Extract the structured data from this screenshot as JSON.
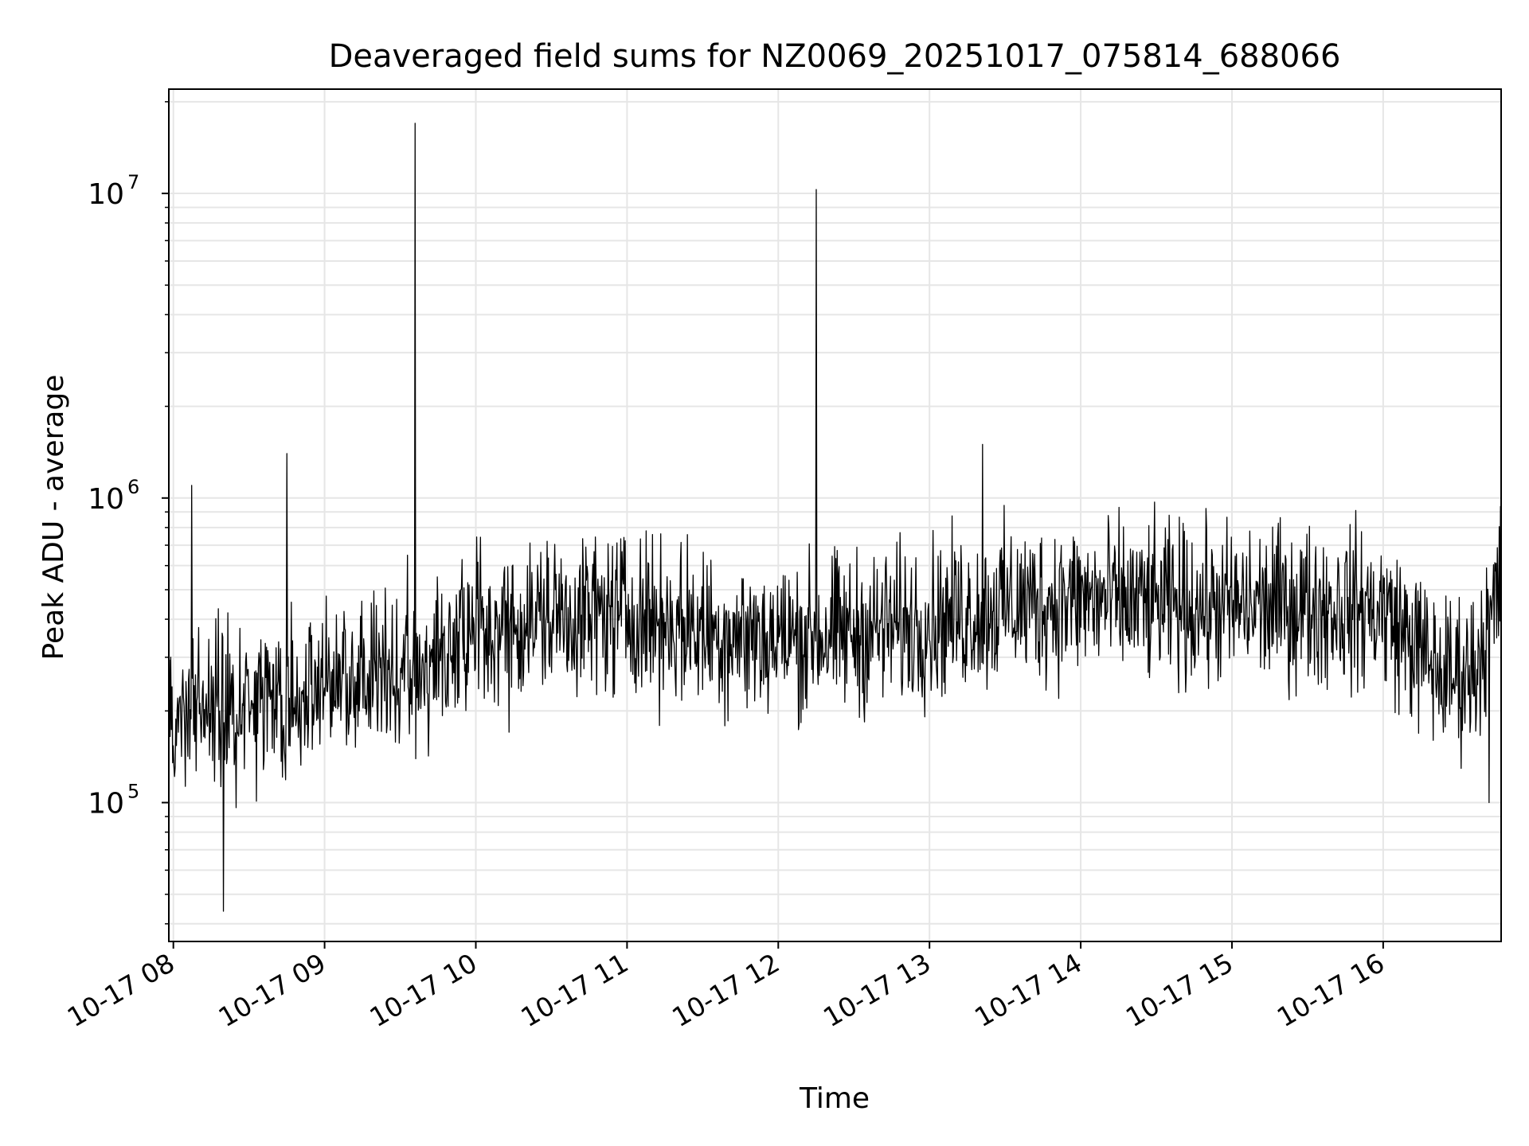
{
  "chart_data": {
    "type": "line",
    "title": "Deaveraged field sums for NZ0069_20251017_075814_688066",
    "xlabel": "Time",
    "ylabel": "Peak ADU - average",
    "yscale": "log",
    "ylim": [
      35000,
      22000000
    ],
    "xlim_hours": [
      7.97,
      16.78
    ],
    "grid": true,
    "x_ticks": [
      {
        "hour": 8,
        "label": "10-17 08"
      },
      {
        "hour": 9,
        "label": "10-17 09"
      },
      {
        "hour": 10,
        "label": "10-17 10"
      },
      {
        "hour": 11,
        "label": "10-17 11"
      },
      {
        "hour": 12,
        "label": "10-17 12"
      },
      {
        "hour": 13,
        "label": "10-17 13"
      },
      {
        "hour": 14,
        "label": "10-17 14"
      },
      {
        "hour": 15,
        "label": "10-17 15"
      },
      {
        "hour": 16,
        "label": "10-17 16"
      }
    ],
    "y_ticks": [
      {
        "value": 100000,
        "base": "10",
        "exp": "5"
      },
      {
        "value": 1000000,
        "base": "10",
        "exp": "6"
      },
      {
        "value": 10000000,
        "base": "10",
        "exp": "7"
      }
    ],
    "series": [
      {
        "name": "Peak ADU - average",
        "color": "#000000",
        "baseline": [
          [
            7.97,
            230000
          ],
          [
            8.5,
            240000
          ],
          [
            9.0,
            270000
          ],
          [
            9.5,
            320000
          ],
          [
            10.0,
            420000
          ],
          [
            10.5,
            480000
          ],
          [
            11.0,
            490000
          ],
          [
            11.5,
            430000
          ],
          [
            12.0,
            400000
          ],
          [
            12.5,
            420000
          ],
          [
            13.0,
            460000
          ],
          [
            13.5,
            520000
          ],
          [
            14.0,
            540000
          ],
          [
            14.5,
            520000
          ],
          [
            15.0,
            510000
          ],
          [
            15.5,
            520000
          ],
          [
            16.0,
            500000
          ],
          [
            16.4,
            300000
          ],
          [
            16.6,
            320000
          ],
          [
            16.78,
            600000
          ]
        ],
        "sample_count": 2100,
        "scatter_factor_low": 0.35,
        "scatter_factor_high": 2.1,
        "notable_points": [
          {
            "hour": 8.12,
            "value": 1100000
          },
          {
            "hour": 8.33,
            "value": 44000
          },
          {
            "hour": 8.75,
            "value": 1400000
          },
          {
            "hour": 9.6,
            "value": 17000000
          },
          {
            "hour": 12.25,
            "value": 10300000
          },
          {
            "hour": 13.35,
            "value": 1500000
          },
          {
            "hour": 16.7,
            "value": 100000
          }
        ]
      }
    ]
  }
}
